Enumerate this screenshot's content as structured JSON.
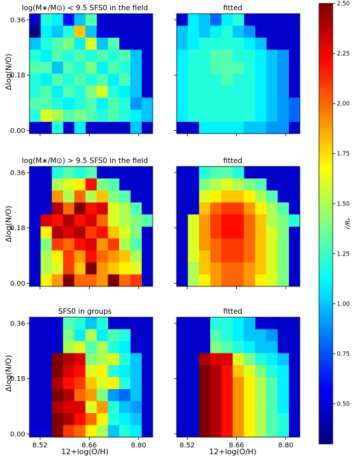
{
  "figure": {
    "titles": [
      "log(M∗/M⊙) < 9.5 SFS0 in the field",
      "fitted",
      "log(M∗/M⊙) > 9.5 SFS0 in the field",
      "fitted",
      "SFS0 in groups",
      "fitted"
    ],
    "ylabel": "Δlog(N/O)",
    "xlabel": "12+log(O/H)",
    "x_ticks": [
      "8.52",
      "8.66",
      "8.80"
    ],
    "y_ticks": [
      "0.00",
      "0.18",
      "0.36"
    ],
    "colorbar_label": "r/Rₑ",
    "colorbar_ticks": [
      "0.50",
      "0.75",
      "1.00",
      "1.25",
      "1.50",
      "1.75",
      "2.00",
      "2.25",
      "2.50"
    ],
    "colormap": "jet"
  },
  "chart_data": [
    {
      "type": "heatmap",
      "title": "log(M∗/M⊙) < 9.5 SFS0 in the field",
      "xlabel": "12+log(O/H)",
      "ylabel": "Δlog(N/O)",
      "x_ticks": [
        8.52,
        8.66,
        8.8
      ],
      "y_ticks": [
        0.0,
        0.18,
        0.36
      ],
      "vmin": 0.3,
      "vmax": 2.5,
      "rows_top_to_bottom": [
        [
          null,
          1.2,
          1.1,
          0.6,
          1.0,
          1.3,
          null,
          null,
          null,
          null,
          null
        ],
        [
          0.3,
          1.1,
          1.0,
          1.2,
          1.8,
          1.0,
          0.5,
          null,
          null,
          null,
          null
        ],
        [
          1.0,
          1.2,
          1.3,
          1.4,
          1.1,
          1.6,
          1.0,
          1.3,
          null,
          null,
          null
        ],
        [
          1.2,
          1.1,
          1.3,
          1.2,
          1.3,
          1.2,
          1.3,
          1.2,
          1.3,
          1.0,
          null
        ],
        [
          1.3,
          1.3,
          1.0,
          1.3,
          1.2,
          1.4,
          1.1,
          1.3,
          1.2,
          1.0,
          null
        ],
        [
          1.2,
          1.1,
          1.3,
          1.2,
          1.3,
          1.2,
          1.3,
          1.1,
          1.3,
          1.0,
          null
        ],
        [
          1.2,
          1.3,
          1.1,
          1.3,
          1.2,
          1.4,
          1.6,
          1.2,
          1.1,
          1.0,
          null
        ],
        [
          1.3,
          1.3,
          1.2,
          1.1,
          1.2,
          1.3,
          1.1,
          1.3,
          1.2,
          0.9,
          1.0
        ],
        [
          1.2,
          1.6,
          1.5,
          1.3,
          1.4,
          1.3,
          1.2,
          1.3,
          1.2,
          1.1,
          1.0
        ],
        [
          null,
          null,
          1.2,
          null,
          1.1,
          null,
          null,
          null,
          null,
          1.0,
          null
        ]
      ]
    },
    {
      "type": "heatmap",
      "title": "fitted",
      "xlabel": "12+log(O/H)",
      "ylabel": "Δlog(N/O)",
      "x_ticks": [
        8.52,
        8.66,
        8.8
      ],
      "y_ticks": [
        0.0,
        0.18,
        0.36
      ],
      "vmin": 0.3,
      "vmax": 2.5,
      "rows_top_to_bottom": [
        [
          null,
          1.1,
          1.0,
          0.8,
          1.1,
          1.2,
          null,
          null,
          null,
          null,
          null
        ],
        [
          1.0,
          1.1,
          1.0,
          1.1,
          1.2,
          1.0,
          0.9,
          null,
          null,
          null,
          null
        ],
        [
          1.0,
          1.1,
          1.2,
          1.2,
          1.2,
          1.2,
          1.1,
          1.0,
          null,
          null,
          null
        ],
        [
          1.1,
          1.2,
          1.2,
          1.3,
          1.3,
          1.2,
          1.2,
          1.1,
          1.0,
          0.9,
          null
        ],
        [
          1.1,
          1.2,
          1.2,
          1.3,
          1.3,
          1.3,
          1.2,
          1.1,
          1.0,
          0.9,
          null
        ],
        [
          1.1,
          1.2,
          1.2,
          1.2,
          1.3,
          1.2,
          1.2,
          1.1,
          1.0,
          0.9,
          null
        ],
        [
          1.1,
          1.2,
          1.2,
          1.2,
          1.2,
          1.2,
          1.2,
          1.1,
          1.0,
          0.9,
          null
        ],
        [
          1.1,
          1.2,
          1.2,
          1.2,
          1.2,
          1.2,
          1.2,
          1.1,
          1.0,
          0.9,
          0.8
        ],
        [
          1.1,
          1.2,
          1.2,
          1.2,
          1.2,
          1.2,
          1.2,
          1.1,
          1.0,
          0.9,
          0.8
        ],
        [
          null,
          null,
          1.1,
          1.1,
          1.1,
          1.1,
          1.0,
          1.0,
          0.9,
          0.9,
          null
        ]
      ]
    },
    {
      "type": "heatmap",
      "title": "log(M∗/M⊙) > 9.5 SFS0 in the field",
      "xlabel": "12+log(O/H)",
      "ylabel": "Δlog(N/O)",
      "x_ticks": [
        8.52,
        8.66,
        8.8
      ],
      "y_ticks": [
        0.0,
        0.18,
        0.36
      ],
      "vmin": 0.3,
      "vmax": 2.5,
      "rows_top_to_bottom": [
        [
          null,
          null,
          1.2,
          1.3,
          1.2,
          1.3,
          null,
          null,
          null,
          null,
          null
        ],
        [
          null,
          null,
          1.5,
          1.6,
          1.7,
          2.2,
          1.4,
          1.3,
          null,
          null,
          null
        ],
        [
          null,
          null,
          1.9,
          1.5,
          2.0,
          1.5,
          1.8,
          1.4,
          1.3,
          null,
          null
        ],
        [
          null,
          null,
          2.4,
          2.0,
          2.5,
          2.2,
          2.3,
          1.6,
          1.5,
          1.3,
          null
        ],
        [
          null,
          2.3,
          2.2,
          2.4,
          2.2,
          2.3,
          2.0,
          1.6,
          1.5,
          1.4,
          1.3
        ],
        [
          null,
          1.7,
          2.4,
          2.3,
          2.4,
          2.1,
          2.2,
          1.8,
          1.6,
          1.4,
          null
        ],
        [
          null,
          1.4,
          2.1,
          2.0,
          2.2,
          2.3,
          1.9,
          2.1,
          1.5,
          1.3,
          null
        ],
        [
          null,
          1.5,
          1.7,
          2.1,
          1.9,
          2.2,
          2.0,
          1.9,
          1.8,
          1.5,
          null
        ],
        [
          null,
          1.5,
          1.6,
          2.1,
          1.8,
          2.5,
          1.9,
          1.8,
          1.7,
          1.6,
          null
        ],
        [
          null,
          1.7,
          1.9,
          2.5,
          2.0,
          2.0,
          1.9,
          2.5,
          2.0,
          2.1,
          null
        ]
      ]
    },
    {
      "type": "heatmap",
      "title": "fitted",
      "xlabel": "12+log(O/H)",
      "ylabel": "Δlog(N/O)",
      "x_ticks": [
        8.52,
        8.66,
        8.8
      ],
      "y_ticks": [
        0.0,
        0.18,
        0.36
      ],
      "vmin": 0.3,
      "vmax": 2.5,
      "rows_top_to_bottom": [
        [
          null,
          null,
          1.2,
          1.3,
          1.3,
          1.2,
          null,
          null,
          null,
          null,
          null
        ],
        [
          null,
          null,
          1.4,
          1.5,
          1.6,
          1.5,
          1.4,
          1.3,
          null,
          null,
          null
        ],
        [
          null,
          null,
          1.6,
          1.7,
          1.8,
          1.8,
          1.7,
          1.5,
          1.3,
          null,
          null
        ],
        [
          null,
          null,
          1.8,
          2.0,
          2.1,
          2.1,
          1.9,
          1.7,
          1.5,
          1.3,
          null
        ],
        [
          null,
          1.6,
          1.9,
          2.1,
          2.2,
          2.2,
          2.0,
          1.8,
          1.5,
          1.4,
          1.2
        ],
        [
          null,
          1.6,
          1.9,
          2.1,
          2.2,
          2.2,
          2.0,
          1.8,
          1.6,
          1.4,
          null
        ],
        [
          null,
          1.6,
          1.9,
          2.0,
          2.1,
          2.1,
          2.0,
          1.8,
          1.6,
          1.4,
          null
        ],
        [
          null,
          1.6,
          1.8,
          2.0,
          2.1,
          2.1,
          2.0,
          1.8,
          1.6,
          1.4,
          null
        ],
        [
          null,
          1.5,
          1.8,
          1.9,
          2.0,
          2.0,
          1.9,
          1.8,
          1.6,
          1.4,
          null
        ],
        [
          null,
          1.5,
          1.7,
          1.9,
          2.0,
          2.0,
          1.9,
          1.7,
          1.6,
          1.4,
          null
        ]
      ]
    },
    {
      "type": "heatmap",
      "title": "SFS0 in groups",
      "xlabel": "12+log(O/H)",
      "ylabel": "Δlog(N/O)",
      "x_ticks": [
        8.52,
        8.66,
        8.8
      ],
      "y_ticks": [
        0.0,
        0.18,
        0.36
      ],
      "vmin": 0.3,
      "vmax": 2.5,
      "rows_top_to_bottom": [
        [
          null,
          null,
          null,
          1.3,
          1.2,
          1.0,
          1.2,
          null,
          null,
          null,
          null
        ],
        [
          null,
          null,
          null,
          1.4,
          1.1,
          1.5,
          1.1,
          1.3,
          1.2,
          null,
          null
        ],
        [
          null,
          null,
          null,
          1.5,
          1.6,
          1.3,
          1.5,
          1.2,
          1.1,
          null,
          null
        ],
        [
          null,
          null,
          2.5,
          2.4,
          2.3,
          1.4,
          1.5,
          1.6,
          1.2,
          1.0,
          null
        ],
        [
          null,
          null,
          2.5,
          2.3,
          2.2,
          1.6,
          1.7,
          1.2,
          1.1,
          1.0,
          null
        ],
        [
          null,
          null,
          2.4,
          2.2,
          2.1,
          1.8,
          1.6,
          1.7,
          1.2,
          1.0,
          null
        ],
        [
          null,
          null,
          2.5,
          2.4,
          2.0,
          1.9,
          1.4,
          0.9,
          0.8,
          1.0,
          null
        ],
        [
          null,
          null,
          2.4,
          2.3,
          2.3,
          1.6,
          1.9,
          1.2,
          1.0,
          0.9,
          null
        ],
        [
          null,
          null,
          2.5,
          2.4,
          2.2,
          2.0,
          1.7,
          1.2,
          1.1,
          1.0,
          null
        ],
        [
          null,
          null,
          2.5,
          2.1,
          2.0,
          1.7,
          1.5,
          1.0,
          1.2,
          1.1,
          null
        ]
      ]
    },
    {
      "type": "heatmap",
      "title": "fitted",
      "xlabel": "12+log(O/H)",
      "ylabel": "Δlog(N/O)",
      "x_ticks": [
        8.52,
        8.66,
        8.8
      ],
      "y_ticks": [
        0.0,
        0.18,
        0.36
      ],
      "vmin": 0.3,
      "vmax": 2.5,
      "rows_top_to_bottom": [
        [
          null,
          null,
          null,
          1.2,
          1.2,
          1.1,
          1.0,
          null,
          null,
          null,
          null
        ],
        [
          null,
          null,
          null,
          1.3,
          1.2,
          1.1,
          1.0,
          1.0,
          0.9,
          null,
          null
        ],
        [
          null,
          null,
          null,
          1.4,
          1.3,
          1.2,
          1.1,
          1.0,
          1.0,
          null,
          null
        ],
        [
          null,
          null,
          2.4,
          2.3,
          2.3,
          1.6,
          1.4,
          1.2,
          1.1,
          1.0,
          null
        ],
        [
          null,
          null,
          2.5,
          2.4,
          2.2,
          1.8,
          1.6,
          1.4,
          1.2,
          1.1,
          null
        ],
        [
          null,
          null,
          2.5,
          2.4,
          2.2,
          1.9,
          1.7,
          1.5,
          1.3,
          1.1,
          null
        ],
        [
          null,
          null,
          2.5,
          2.4,
          2.2,
          1.9,
          1.7,
          1.5,
          1.3,
          1.1,
          null
        ],
        [
          null,
          null,
          2.5,
          2.4,
          2.2,
          1.9,
          1.7,
          1.5,
          1.3,
          1.1,
          null
        ],
        [
          null,
          null,
          2.5,
          2.4,
          2.2,
          1.9,
          1.7,
          1.5,
          1.3,
          1.2,
          null
        ],
        [
          null,
          null,
          2.5,
          2.4,
          2.2,
          1.9,
          1.7,
          1.5,
          1.3,
          1.2,
          null
        ]
      ]
    }
  ]
}
